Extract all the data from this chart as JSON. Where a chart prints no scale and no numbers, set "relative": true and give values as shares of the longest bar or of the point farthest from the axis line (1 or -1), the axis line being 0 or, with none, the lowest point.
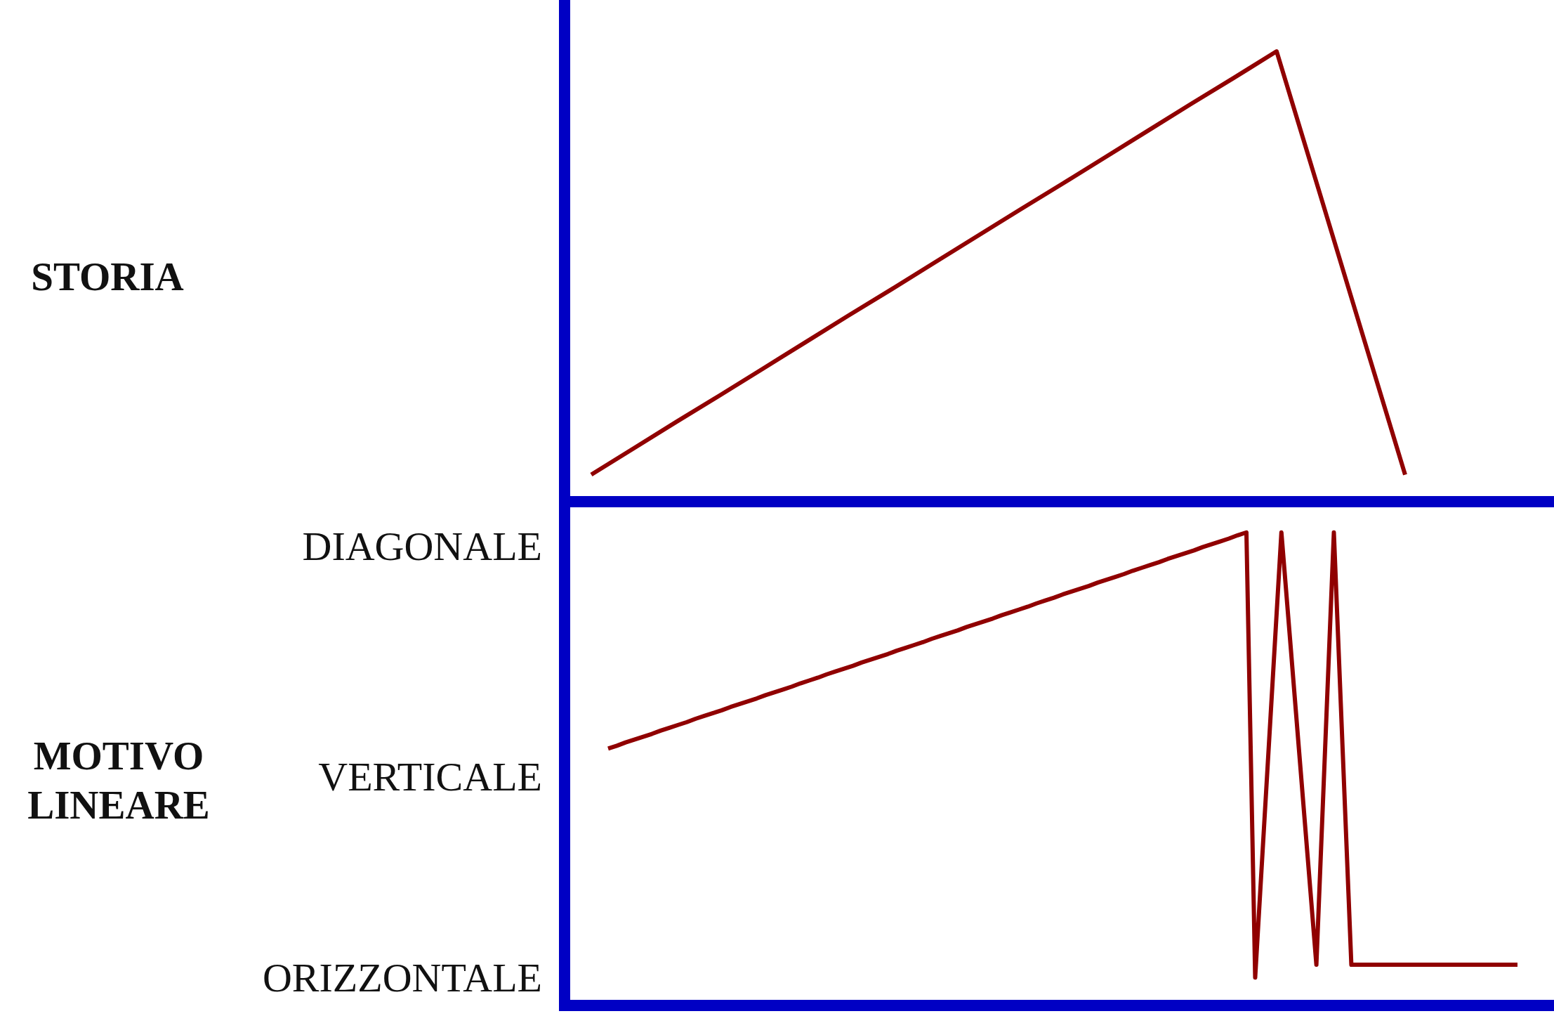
{
  "chart_data": [
    {
      "type": "line",
      "ylabel": "STORIA",
      "relative": true,
      "color": "#900000",
      "categories": [
        null,
        null,
        null,
        null,
        null,
        null,
        null,
        null,
        null,
        null,
        null,
        null,
        null,
        null,
        null,
        null,
        null,
        null,
        null,
        null
      ],
      "values": [
        0.06,
        0.119,
        0.178,
        0.236,
        0.295,
        0.354,
        0.413,
        0.471,
        0.53,
        0.589,
        0.648,
        0.706,
        0.765,
        0.824,
        0.883,
        0.941,
        1,
        0.687,
        0.373,
        0.06
      ]
    },
    {
      "type": "line",
      "ylabel": "MOTIVO LINEARE",
      "relative": true,
      "color": "#900000",
      "annotations": [
        "DIAGONALE",
        "VERTICALE",
        "ORIZZONTALE"
      ],
      "categories": [
        null,
        null,
        null,
        null,
        null,
        null,
        null,
        null,
        null,
        null,
        null,
        null,
        null,
        null,
        null,
        null,
        null,
        null,
        null,
        null,
        null,
        null,
        null,
        null,
        null,
        null,
        null,
        null,
        null,
        null,
        null,
        null,
        null,
        null,
        null,
        null,
        null,
        null,
        null,
        null,
        null,
        null,
        null,
        null,
        null,
        null,
        null,
        null,
        null,
        null,
        null,
        null,
        null,
        null,
        null,
        null,
        null,
        null,
        null,
        null,
        null,
        null,
        null,
        null,
        null,
        null,
        null,
        null,
        null,
        null,
        null,
        null,
        null,
        null,
        null,
        null,
        null,
        null,
        null,
        null,
        null,
        null,
        null,
        null,
        null,
        null,
        null,
        null,
        null,
        null,
        null,
        null,
        null,
        null,
        null,
        null,
        null,
        null,
        null,
        null,
        null,
        null,
        null,
        null,
        null
      ],
      "values": [
        0.543,
        0.549,
        0.556,
        0.562,
        0.568,
        0.574,
        0.581,
        0.587,
        0.593,
        0.599,
        0.606,
        0.612,
        0.618,
        0.624,
        0.631,
        0.637,
        0.643,
        0.649,
        0.656,
        0.662,
        0.668,
        0.674,
        0.681,
        0.687,
        0.693,
        0.7,
        0.706,
        0.712,
        0.718,
        0.725,
        0.731,
        0.737,
        0.743,
        0.75,
        0.756,
        0.762,
        0.768,
        0.775,
        0.781,
        0.787,
        0.793,
        0.8,
        0.806,
        0.812,
        0.818,
        0.825,
        0.831,
        0.837,
        0.843,
        0.85,
        0.856,
        0.862,
        0.869,
        0.875,
        0.881,
        0.887,
        0.894,
        0.9,
        0.906,
        0.912,
        0.919,
        0.925,
        0.931,
        0.937,
        0.944,
        0.95,
        0.956,
        0.962,
        0.969,
        0.975,
        0.981,
        0.987,
        0.994,
        1,
        0.059,
        0.373,
        0.686,
        1,
        0.772,
        0.543,
        0.315,
        0.086,
        0.543,
        1,
        0.543,
        0.086,
        0.086,
        0.086,
        0.086,
        0.086,
        0.086,
        0.086,
        0.086,
        0.086,
        0.086,
        0.086,
        0.086,
        0.086,
        0.086,
        0.086,
        0.086,
        0.086,
        0.086,
        0.086,
        0.086
      ]
    }
  ]
}
